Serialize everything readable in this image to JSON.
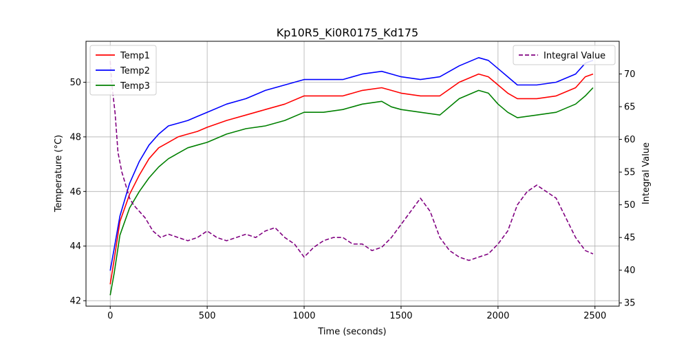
{
  "chart_data": {
    "type": "line",
    "title": "Kp10R5_Ki0R0175_Kd175",
    "xlabel": "Time (seconds)",
    "ylabel": "Temperature (°C)",
    "y2label": "Integral Value",
    "xlim": [
      -125,
      2625
    ],
    "ylim": [
      41.8,
      51.5
    ],
    "y2lim": [
      34.5,
      75
    ],
    "xticks": [
      0,
      500,
      1000,
      1500,
      2000,
      2500
    ],
    "yticks": [
      42,
      44,
      46,
      48,
      50
    ],
    "y2ticks": [
      35,
      40,
      45,
      50,
      55,
      60,
      65,
      70
    ],
    "grid": true,
    "legend_left": "top-left",
    "legend_right": "top-right",
    "series": [
      {
        "name": "Temp1",
        "axis": "left",
        "color": "#ff0000",
        "style": "solid",
        "x": [
          0,
          20,
          50,
          100,
          150,
          200,
          250,
          300,
          350,
          400,
          450,
          500,
          600,
          700,
          800,
          900,
          1000,
          1100,
          1200,
          1300,
          1400,
          1450,
          1500,
          1600,
          1700,
          1800,
          1900,
          1950,
          2000,
          2050,
          2100,
          2200,
          2300,
          2400,
          2450,
          2490
        ],
        "y": [
          42.6,
          43.5,
          44.9,
          45.9,
          46.6,
          47.2,
          47.6,
          47.8,
          48.0,
          48.1,
          48.2,
          48.35,
          48.6,
          48.8,
          49.0,
          49.2,
          49.5,
          49.5,
          49.5,
          49.7,
          49.8,
          49.7,
          49.6,
          49.5,
          49.5,
          50.0,
          50.3,
          50.2,
          49.9,
          49.6,
          49.4,
          49.4,
          49.5,
          49.8,
          50.2,
          50.3
        ]
      },
      {
        "name": "Temp2",
        "axis": "left",
        "color": "#0000ff",
        "style": "solid",
        "x": [
          0,
          20,
          50,
          100,
          150,
          200,
          250,
          300,
          350,
          400,
          450,
          500,
          600,
          700,
          800,
          900,
          1000,
          1100,
          1200,
          1300,
          1400,
          1450,
          1500,
          1600,
          1700,
          1800,
          1900,
          1950,
          2000,
          2050,
          2100,
          2200,
          2300,
          2400,
          2450,
          2490
        ],
        "y": [
          43.1,
          43.9,
          45.1,
          46.3,
          47.1,
          47.7,
          48.1,
          48.4,
          48.5,
          48.6,
          48.75,
          48.9,
          49.2,
          49.4,
          49.7,
          49.9,
          50.1,
          50.1,
          50.1,
          50.3,
          50.4,
          50.3,
          50.2,
          50.1,
          50.2,
          50.6,
          50.9,
          50.8,
          50.5,
          50.2,
          49.9,
          49.9,
          50.0,
          50.3,
          50.7,
          50.8
        ]
      },
      {
        "name": "Temp3",
        "axis": "left",
        "color": "#008000",
        "style": "solid",
        "x": [
          0,
          20,
          50,
          100,
          150,
          200,
          250,
          300,
          350,
          400,
          450,
          500,
          600,
          700,
          800,
          900,
          1000,
          1100,
          1200,
          1300,
          1400,
          1450,
          1500,
          1600,
          1700,
          1800,
          1900,
          1950,
          2000,
          2050,
          2100,
          2200,
          2300,
          2400,
          2450,
          2490
        ],
        "y": [
          42.2,
          43.0,
          44.4,
          45.4,
          46.0,
          46.5,
          46.9,
          47.2,
          47.4,
          47.6,
          47.7,
          47.8,
          48.1,
          48.3,
          48.4,
          48.6,
          48.9,
          48.9,
          49.0,
          49.2,
          49.3,
          49.1,
          49.0,
          48.9,
          48.8,
          49.4,
          49.7,
          49.6,
          49.2,
          48.9,
          48.7,
          48.8,
          48.9,
          49.2,
          49.5,
          49.8
        ]
      },
      {
        "name": "Integral Value",
        "axis": "right",
        "color": "#800080",
        "style": "dashed",
        "x": [
          0,
          10,
          25,
          40,
          60,
          80,
          100,
          120,
          150,
          180,
          220,
          260,
          300,
          350,
          400,
          450,
          500,
          550,
          600,
          650,
          700,
          750,
          800,
          850,
          900,
          950,
          1000,
          1050,
          1100,
          1150,
          1200,
          1250,
          1300,
          1350,
          1400,
          1450,
          1500,
          1550,
          1600,
          1650,
          1700,
          1750,
          1800,
          1850,
          1900,
          1950,
          2000,
          2050,
          2100,
          2150,
          2200,
          2250,
          2300,
          2350,
          2400,
          2450,
          2490
        ],
        "y": [
          72,
          68,
          64,
          58,
          55,
          53,
          51,
          50,
          49,
          48,
          46,
          45,
          45.5,
          45,
          44.5,
          45,
          46,
          45,
          44.5,
          45,
          45.5,
          45,
          46,
          46.5,
          45,
          44,
          42,
          43.5,
          44.5,
          45,
          45,
          44,
          44,
          43,
          43.5,
          45,
          47,
          49,
          51,
          49,
          45,
          43,
          42,
          41.5,
          42,
          42.5,
          44,
          46,
          50,
          52,
          53,
          52,
          51,
          48,
          45,
          43,
          42.5
        ]
      }
    ]
  }
}
